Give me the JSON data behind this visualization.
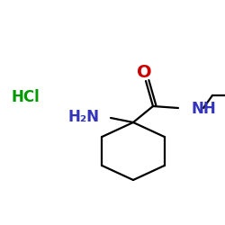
{
  "background_color": "#ffffff",
  "figsize": [
    2.5,
    2.5
  ],
  "dpi": 100,
  "ring_color": "#000000",
  "ring_lw": 1.6,
  "bond_color": "#000000",
  "bond_lw": 1.6,
  "oxygen_label": "O",
  "oxygen_color": "#cc0000",
  "oxygen_fontsize": 14,
  "nh_label": "NH",
  "nh_color": "#3333bb",
  "nh_fontsize": 12,
  "nh2_label": "H₂N",
  "nh2_color": "#3333bb",
  "nh2_fontsize": 12,
  "hcl_label": "HCl",
  "hcl_color": "#009900",
  "hcl_fontsize": 12
}
